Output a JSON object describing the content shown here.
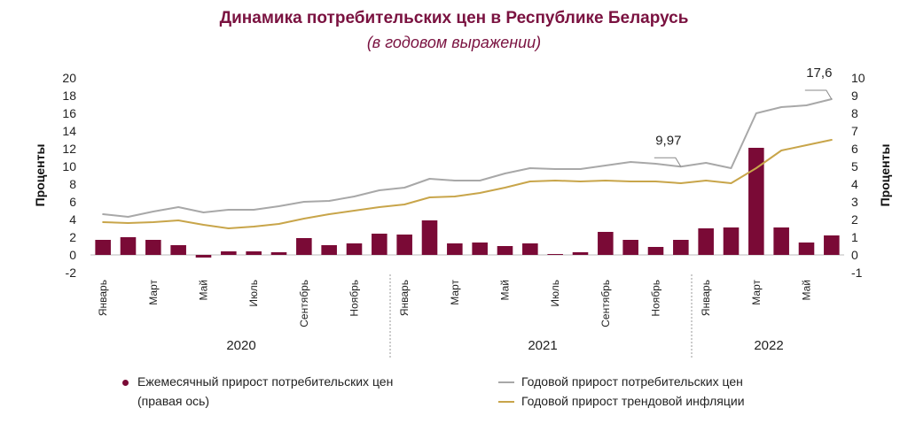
{
  "title": "Динамика потребительских цен в Республике Беларусь",
  "subtitle": "(в годовом выражении)",
  "colors": {
    "bars": "#7a0a36",
    "annual": "#a8a8a8",
    "trend": "#c8a54a",
    "title": "#7a1240"
  },
  "legend": {
    "bars_line1": "Ежемесячный прирост потребительских цен",
    "bars_line2": "(правая ось)",
    "annual": "Годовой прирост потребительских цен",
    "trend": "Годовой прирост трендовой инфляции"
  },
  "chart_data": {
    "type": "bar+line",
    "left_axis": {
      "label": "Проценты",
      "min": -2,
      "max": 20,
      "ticks": [
        "-2",
        "0",
        "2",
        "4",
        "6",
        "8",
        "10",
        "12",
        "14",
        "16",
        "18",
        "20"
      ]
    },
    "right_axis": {
      "label": "Проценты",
      "min": -1,
      "max": 10,
      "ticks": [
        "-1",
        "0",
        "1",
        "2",
        "3",
        "4",
        "5",
        "6",
        "7",
        "8",
        "9",
        "10"
      ]
    },
    "x_tick_labels": [
      "Январь",
      "",
      "Март",
      "",
      "Май",
      "",
      "Июль",
      "",
      "Сентябрь",
      "",
      "Ноябрь",
      "",
      "Январь",
      "",
      "Март",
      "",
      "Май",
      "",
      "Июль",
      "",
      "Сентябрь",
      "",
      "Ноябрь",
      "",
      "Январь",
      "",
      "Март",
      "",
      "Май",
      ""
    ],
    "years": [
      {
        "label": "2020",
        "from": 0,
        "to": 11
      },
      {
        "label": "2021",
        "from": 12,
        "to": 23
      },
      {
        "label": "2022",
        "from": 24,
        "to": 29
      }
    ],
    "series": [
      {
        "name": "Ежемесячный прирост потребительских цен",
        "axis": "right",
        "kind": "bar",
        "values": [
          0.85,
          1.0,
          0.85,
          0.55,
          -0.15,
          0.2,
          0.2,
          0.15,
          0.95,
          0.55,
          0.65,
          1.2,
          1.15,
          1.95,
          0.65,
          0.7,
          0.5,
          0.65,
          0.05,
          0.15,
          1.3,
          0.85,
          0.45,
          0.85,
          1.5,
          1.55,
          6.05,
          1.55,
          0.7,
          1.1
        ]
      },
      {
        "name": "Годовой прирост потребительских цен",
        "axis": "left",
        "kind": "line",
        "values": [
          4.6,
          4.3,
          4.9,
          5.4,
          4.8,
          5.1,
          5.1,
          5.5,
          6.0,
          6.1,
          6.6,
          7.3,
          7.6,
          8.6,
          8.4,
          8.4,
          9.2,
          9.8,
          9.7,
          9.7,
          10.1,
          10.5,
          10.3,
          9.97,
          10.4,
          9.8,
          16.0,
          16.7,
          16.9,
          17.6
        ]
      },
      {
        "name": "Годовой прирост трендовой инфляции",
        "axis": "left",
        "kind": "line",
        "values": [
          3.7,
          3.6,
          3.7,
          3.9,
          3.4,
          3.0,
          3.2,
          3.5,
          4.1,
          4.6,
          5.0,
          5.4,
          5.7,
          6.5,
          6.6,
          7.0,
          7.6,
          8.3,
          8.4,
          8.3,
          8.4,
          8.3,
          8.3,
          8.1,
          8.4,
          8.1,
          9.8,
          11.8,
          12.4,
          13.0
        ]
      }
    ],
    "annotations": [
      {
        "text": "9,97",
        "index": 23,
        "series": "Годовой прирост потребительских цен"
      },
      {
        "text": "17,6",
        "index": 29,
        "series": "Годовой прирост потребительских цен"
      }
    ]
  }
}
